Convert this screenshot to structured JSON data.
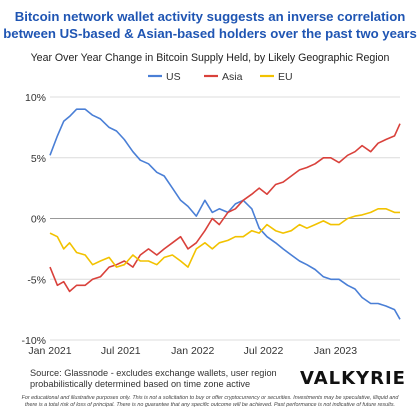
{
  "headline": "Bitcoin network wallet activity suggests an inverse correlation\nbetween US-based & Asian-based holders over the past two years",
  "subtitle": "Year Over Year Change in Bitcoin Supply Held, by Likely Geographic Region",
  "source_note": "Source: Glassnode - excludes exchange wallets, user region\nprobabilistically determined based on time zone active",
  "logo_text": "VALKYRIE",
  "disclaimer": "For educational and illustrative purposes only. This is not a solicitation to buy or offer cryptocurrency or securities. Investments may be speculative, illiquid and\nthere is a total risk of loss of principal. There is no guarantee that any specific outcome will be achieved. Past performance is not indicative of future results.",
  "chart_data": {
    "type": "line",
    "title": "Year Over Year Change in Bitcoin Supply Held, by Likely Geographic Region",
    "xlabel": "",
    "ylabel": "",
    "ylim": [
      -10,
      10
    ],
    "yticks": [
      {
        "value": 10,
        "label": "10%"
      },
      {
        "value": 5,
        "label": "5%"
      },
      {
        "value": 0,
        "label": "0%"
      },
      {
        "value": -5,
        "label": "-5%"
      },
      {
        "value": -10,
        "label": "-10%"
      }
    ],
    "xlim": [
      "2021-01-01",
      "2023-06-15"
    ],
    "xticks": [
      {
        "value": "2021-01-01",
        "label": "Jan 2021"
      },
      {
        "value": "2021-07-01",
        "label": "Jul 2021"
      },
      {
        "value": "2022-01-01",
        "label": "Jan 2022"
      },
      {
        "value": "2022-07-01",
        "label": "Jul 2022"
      },
      {
        "value": "2023-01-01",
        "label": "Jan 2023"
      }
    ],
    "grid": "horizontal",
    "legend_position": "top-center",
    "series": [
      {
        "name": "US",
        "color": "#4a7fd6",
        "points": [
          [
            "2021-01-01",
            5.2
          ],
          [
            "2021-01-20",
            6.8
          ],
          [
            "2021-02-05",
            8.0
          ],
          [
            "2021-02-20",
            8.4
          ],
          [
            "2021-03-10",
            9.0
          ],
          [
            "2021-04-01",
            9.0
          ],
          [
            "2021-04-20",
            8.5
          ],
          [
            "2021-05-10",
            8.2
          ],
          [
            "2021-06-01",
            7.5
          ],
          [
            "2021-06-20",
            7.2
          ],
          [
            "2021-07-10",
            6.5
          ],
          [
            "2021-08-01",
            5.5
          ],
          [
            "2021-08-20",
            4.8
          ],
          [
            "2021-09-10",
            4.5
          ],
          [
            "2021-10-01",
            3.8
          ],
          [
            "2021-10-20",
            3.5
          ],
          [
            "2021-11-10",
            2.5
          ],
          [
            "2021-12-01",
            1.5
          ],
          [
            "2021-12-20",
            1.0
          ],
          [
            "2022-01-10",
            0.2
          ],
          [
            "2022-02-01",
            1.5
          ],
          [
            "2022-02-20",
            0.5
          ],
          [
            "2022-03-10",
            0.8
          ],
          [
            "2022-04-01",
            0.5
          ],
          [
            "2022-04-20",
            1.2
          ],
          [
            "2022-05-10",
            1.5
          ],
          [
            "2022-06-01",
            0.8
          ],
          [
            "2022-06-20",
            -0.8
          ],
          [
            "2022-07-10",
            -1.5
          ],
          [
            "2022-08-01",
            -2.0
          ],
          [
            "2022-08-20",
            -2.5
          ],
          [
            "2022-09-10",
            -3.0
          ],
          [
            "2022-10-01",
            -3.5
          ],
          [
            "2022-10-20",
            -3.8
          ],
          [
            "2022-11-10",
            -4.2
          ],
          [
            "2022-12-01",
            -4.8
          ],
          [
            "2022-12-20",
            -5.0
          ],
          [
            "2023-01-10",
            -5.0
          ],
          [
            "2023-02-01",
            -5.5
          ],
          [
            "2023-02-20",
            -5.8
          ],
          [
            "2023-03-10",
            -6.5
          ],
          [
            "2023-04-01",
            -7.0
          ],
          [
            "2023-04-20",
            -7.0
          ],
          [
            "2023-05-10",
            -7.2
          ],
          [
            "2023-06-01",
            -7.5
          ],
          [
            "2023-06-15",
            -8.3
          ]
        ]
      },
      {
        "name": "Asia",
        "color": "#d9413b",
        "points": [
          [
            "2021-01-01",
            -4.0
          ],
          [
            "2021-01-20",
            -5.5
          ],
          [
            "2021-02-05",
            -5.2
          ],
          [
            "2021-02-20",
            -6.0
          ],
          [
            "2021-03-10",
            -5.5
          ],
          [
            "2021-04-01",
            -5.5
          ],
          [
            "2021-04-20",
            -5.0
          ],
          [
            "2021-05-10",
            -4.8
          ],
          [
            "2021-06-01",
            -4.0
          ],
          [
            "2021-06-20",
            -3.8
          ],
          [
            "2021-07-10",
            -3.5
          ],
          [
            "2021-08-01",
            -4.0
          ],
          [
            "2021-08-20",
            -3.0
          ],
          [
            "2021-09-10",
            -2.5
          ],
          [
            "2021-10-01",
            -3.0
          ],
          [
            "2021-10-20",
            -2.5
          ],
          [
            "2021-11-10",
            -2.0
          ],
          [
            "2021-12-01",
            -1.5
          ],
          [
            "2021-12-20",
            -2.5
          ],
          [
            "2022-01-10",
            -2.0
          ],
          [
            "2022-02-01",
            -1.0
          ],
          [
            "2022-02-20",
            0.0
          ],
          [
            "2022-03-10",
            -0.5
          ],
          [
            "2022-04-01",
            0.5
          ],
          [
            "2022-04-20",
            0.8
          ],
          [
            "2022-05-10",
            1.5
          ],
          [
            "2022-06-01",
            2.0
          ],
          [
            "2022-06-20",
            2.5
          ],
          [
            "2022-07-10",
            2.0
          ],
          [
            "2022-08-01",
            2.8
          ],
          [
            "2022-08-20",
            3.0
          ],
          [
            "2022-09-10",
            3.5
          ],
          [
            "2022-10-01",
            4.0
          ],
          [
            "2022-10-20",
            4.2
          ],
          [
            "2022-11-10",
            4.5
          ],
          [
            "2022-12-01",
            5.0
          ],
          [
            "2022-12-20",
            5.0
          ],
          [
            "2023-01-10",
            4.6
          ],
          [
            "2023-02-01",
            5.2
          ],
          [
            "2023-02-20",
            5.5
          ],
          [
            "2023-03-10",
            6.0
          ],
          [
            "2023-04-01",
            5.5
          ],
          [
            "2023-04-20",
            6.2
          ],
          [
            "2023-05-10",
            6.5
          ],
          [
            "2023-06-01",
            6.8
          ],
          [
            "2023-06-15",
            7.8
          ]
        ]
      },
      {
        "name": "EU",
        "color": "#f2c200",
        "points": [
          [
            "2021-01-01",
            -1.2
          ],
          [
            "2021-01-20",
            -1.5
          ],
          [
            "2021-02-05",
            -2.5
          ],
          [
            "2021-02-20",
            -2.0
          ],
          [
            "2021-03-10",
            -2.8
          ],
          [
            "2021-04-01",
            -3.0
          ],
          [
            "2021-04-20",
            -3.8
          ],
          [
            "2021-05-10",
            -3.5
          ],
          [
            "2021-06-01",
            -3.2
          ],
          [
            "2021-06-20",
            -4.0
          ],
          [
            "2021-07-10",
            -3.8
          ],
          [
            "2021-08-01",
            -3.0
          ],
          [
            "2021-08-20",
            -3.5
          ],
          [
            "2021-09-10",
            -3.5
          ],
          [
            "2021-10-01",
            -3.8
          ],
          [
            "2021-10-20",
            -3.2
          ],
          [
            "2021-11-10",
            -3.0
          ],
          [
            "2021-12-01",
            -3.5
          ],
          [
            "2021-12-20",
            -4.0
          ],
          [
            "2022-01-10",
            -2.5
          ],
          [
            "2022-02-01",
            -2.0
          ],
          [
            "2022-02-20",
            -2.5
          ],
          [
            "2022-03-10",
            -2.0
          ],
          [
            "2022-04-01",
            -1.8
          ],
          [
            "2022-04-20",
            -1.5
          ],
          [
            "2022-05-10",
            -1.5
          ],
          [
            "2022-06-01",
            -1.0
          ],
          [
            "2022-06-20",
            -1.2
          ],
          [
            "2022-07-10",
            -0.5
          ],
          [
            "2022-08-01",
            -1.0
          ],
          [
            "2022-08-20",
            -1.2
          ],
          [
            "2022-09-10",
            -1.0
          ],
          [
            "2022-10-01",
            -0.5
          ],
          [
            "2022-10-20",
            -0.8
          ],
          [
            "2022-11-10",
            -0.5
          ],
          [
            "2022-12-01",
            -0.2
          ],
          [
            "2022-12-20",
            -0.5
          ],
          [
            "2023-01-10",
            -0.5
          ],
          [
            "2023-02-01",
            0.0
          ],
          [
            "2023-02-20",
            0.2
          ],
          [
            "2023-03-10",
            0.3
          ],
          [
            "2023-04-01",
            0.5
          ],
          [
            "2023-04-20",
            0.8
          ],
          [
            "2023-05-10",
            0.8
          ],
          [
            "2023-06-01",
            0.5
          ],
          [
            "2023-06-15",
            0.5
          ]
        ]
      }
    ]
  }
}
